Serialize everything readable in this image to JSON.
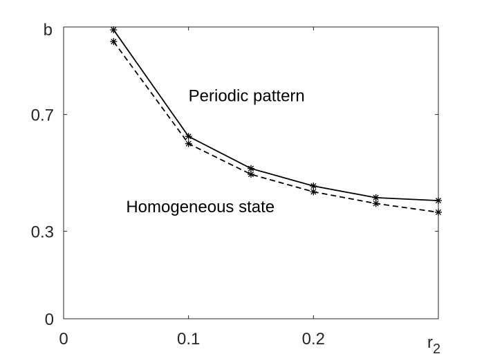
{
  "chart_data": {
    "type": "line",
    "xlim": [
      0,
      0.3
    ],
    "ylim": [
      0,
      1.0
    ],
    "grid": false,
    "x_ticks": [
      {
        "value": 0,
        "label": "0"
      },
      {
        "value": 0.1,
        "label": "0.1"
      },
      {
        "value": 0.2,
        "label": "0.2"
      }
    ],
    "y_ticks": [
      {
        "value": 0,
        "label": "0"
      },
      {
        "value": 0.3,
        "label": "0.3"
      },
      {
        "value": 0.7,
        "label": "0.7"
      }
    ],
    "xlabel": "r",
    "xlabel_subscript": "2",
    "ylabel": "b",
    "series": [
      {
        "style": "solid",
        "marker": "asterisk",
        "color": "#000000",
        "x": [
          0.04,
          0.1,
          0.15,
          0.2,
          0.25,
          0.3
        ],
        "y": [
          0.99,
          0.625,
          0.515,
          0.455,
          0.415,
          0.405
        ]
      },
      {
        "style": "dashed",
        "marker": "asterisk",
        "color": "#000000",
        "x": [
          0.04,
          0.1,
          0.15,
          0.2,
          0.25,
          0.3
        ],
        "y": [
          0.95,
          0.6,
          0.495,
          0.435,
          0.395,
          0.365
        ]
      }
    ],
    "annotations": [
      {
        "text": "Periodic pattern",
        "x": 0.1,
        "y": 0.745
      },
      {
        "text": "Homogeneous state",
        "x": 0.05,
        "y": 0.365
      }
    ]
  }
}
